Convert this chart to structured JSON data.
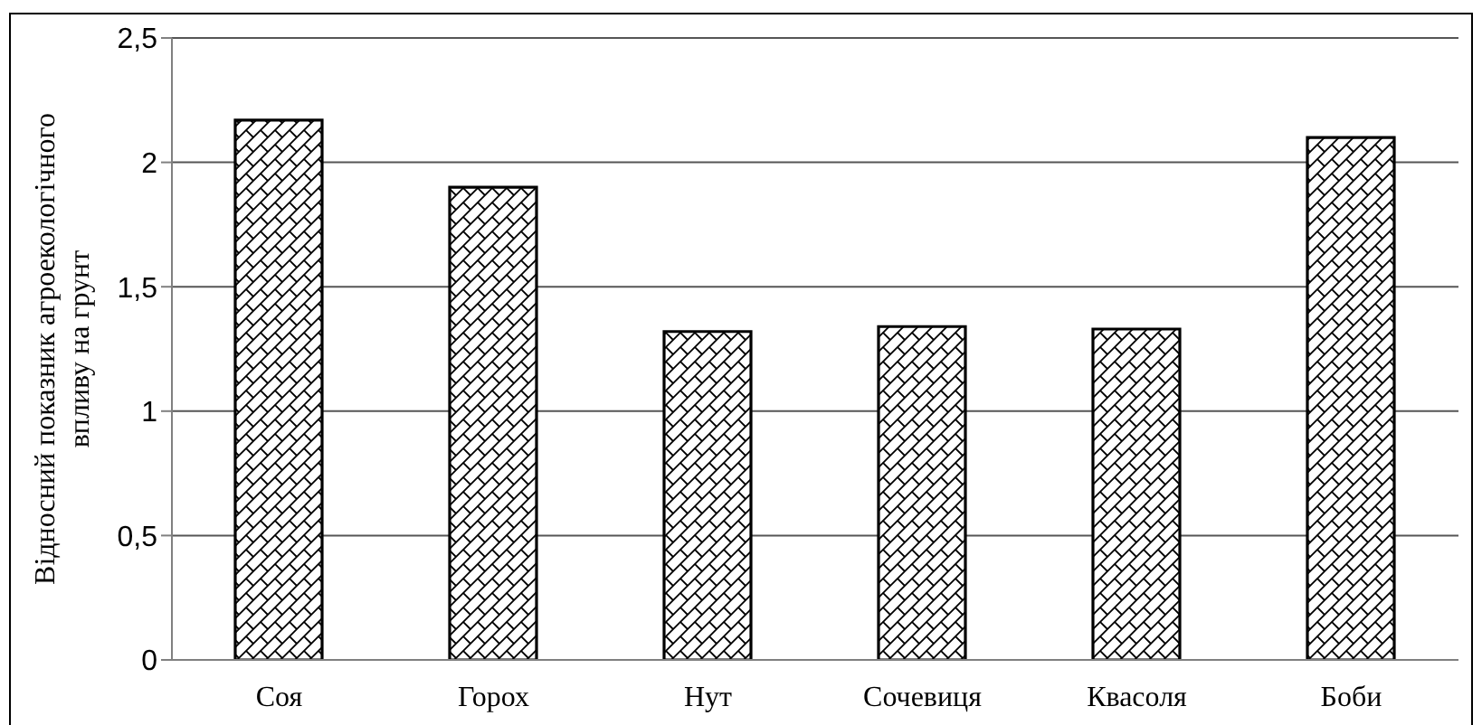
{
  "chart_data": {
    "type": "bar",
    "ylabel": "Відносний показник агроекологічного впливу на грунт",
    "categories": [
      "Соя",
      "Горох",
      "Нут",
      "Сочевиця",
      "Квасоля",
      "Боби"
    ],
    "values": [
      2.17,
      1.9,
      1.32,
      1.34,
      1.33,
      2.1
    ],
    "color": "#000000",
    "ylim": [
      0,
      2.5
    ],
    "yticks": [
      0,
      {
        "value": 0.5,
        "label": "0,5"
      },
      1,
      {
        "value": 1.5,
        "label": "1,5"
      },
      2,
      {
        "value": 2.5,
        "label": "2,5"
      }
    ],
    "grid": "y"
  }
}
